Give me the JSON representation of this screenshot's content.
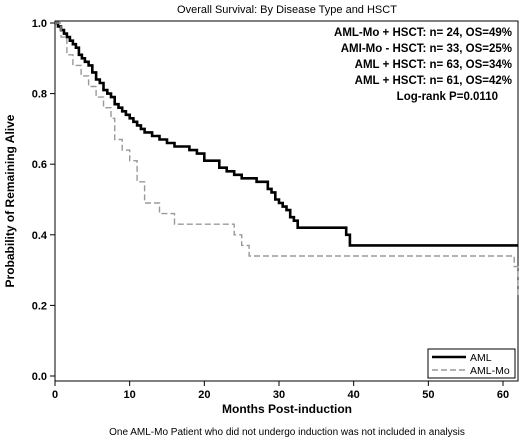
{
  "chart_data": {
    "type": "line",
    "title": "Overall Survival: By Disease Type and HSCT",
    "xlabel": "Months Post-induction",
    "ylabel": "Probability of Remaining Alive",
    "xlim": [
      0,
      62
    ],
    "ylim": [
      0,
      1.0
    ],
    "x_ticks": [
      "0",
      "10",
      "20",
      "30",
      "40",
      "50",
      "60"
    ],
    "y_ticks": [
      "0.0",
      "0.2",
      "0.4",
      "0.6",
      "0.8",
      "1.0"
    ],
    "grid": false,
    "legend_position": "bottom-right",
    "annotations": [
      "AML-Mo + HSCT: n= 24, OS=49%",
      "AMI-Mo - HSCT: n= 33, OS=25%",
      "AML + HSCT: n= 63, OS=34%",
      "AML + HSCT: n= 61, OS=42%",
      "Log-rank P=0.0110"
    ],
    "footnote": "One AML-Mo Patient who did not undergo induction was not included in analysis",
    "series": [
      {
        "name": "AML",
        "style": "solid",
        "color": "#000000",
        "x": [
          0,
          0.4,
          0.8,
          1.2,
          1.6,
          2.0,
          2.4,
          2.8,
          3.2,
          3.6,
          4.0,
          4.5,
          5.0,
          5.5,
          6.0,
          6.5,
          7.0,
          7.5,
          8.0,
          8.5,
          9.0,
          9.5,
          10.0,
          10.5,
          11.0,
          11.5,
          12.0,
          13.0,
          14.0,
          15.0,
          16.0,
          17.0,
          18.0,
          19.0,
          20.0,
          21.0,
          22.0,
          23.0,
          24.0,
          25.0,
          26.0,
          27.0,
          28.0,
          28.5,
          29.0,
          29.5,
          30.0,
          30.5,
          31.0,
          31.5,
          32.0,
          32.5,
          33.0,
          36.0,
          39.0,
          39.5,
          55.0,
          62.0
        ],
        "y": [
          1.0,
          0.99,
          0.98,
          0.97,
          0.96,
          0.95,
          0.94,
          0.93,
          0.91,
          0.9,
          0.89,
          0.88,
          0.86,
          0.84,
          0.83,
          0.81,
          0.8,
          0.79,
          0.77,
          0.76,
          0.75,
          0.74,
          0.73,
          0.72,
          0.71,
          0.7,
          0.69,
          0.68,
          0.67,
          0.66,
          0.65,
          0.65,
          0.64,
          0.63,
          0.61,
          0.61,
          0.59,
          0.58,
          0.57,
          0.56,
          0.56,
          0.55,
          0.55,
          0.53,
          0.52,
          0.5,
          0.49,
          0.48,
          0.47,
          0.45,
          0.44,
          0.42,
          0.42,
          0.42,
          0.4,
          0.37,
          0.37,
          0.37
        ]
      },
      {
        "name": "AML-Mo",
        "style": "dashed",
        "color": "#999999",
        "x": [
          0,
          0.8,
          1.6,
          2.4,
          3.5,
          4.5,
          5.5,
          6.5,
          7.5,
          8.0,
          9.0,
          10.0,
          11.0,
          12.0,
          14.0,
          16.0,
          18.0,
          20.0,
          22.0,
          23.0,
          24.0,
          25.0,
          26.0,
          30.0,
          40.0,
          50.0,
          61.0,
          61.5,
          62.0
        ],
        "y": [
          1.0,
          0.96,
          0.91,
          0.88,
          0.85,
          0.82,
          0.79,
          0.76,
          0.73,
          0.67,
          0.64,
          0.61,
          0.55,
          0.49,
          0.46,
          0.43,
          0.43,
          0.43,
          0.43,
          0.43,
          0.4,
          0.37,
          0.34,
          0.34,
          0.34,
          0.34,
          0.34,
          0.31,
          0.22
        ]
      }
    ]
  }
}
